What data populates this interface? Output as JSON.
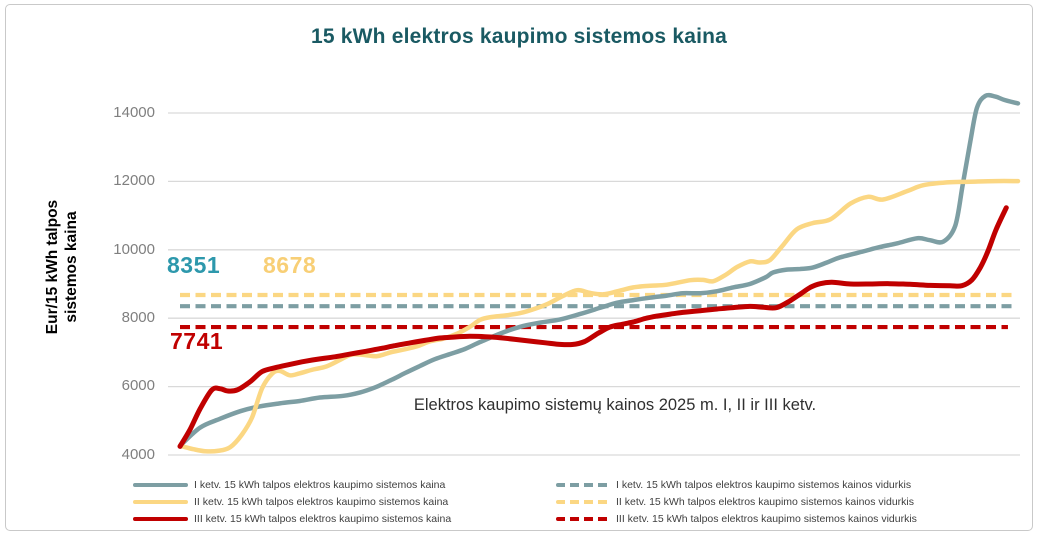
{
  "title": "15 kWh elektros kaupimo sistemos kaina",
  "y_axis": {
    "label_line1": "Eur/15 kWh talpos",
    "label_line2": "sistemos kaina",
    "ticks": [
      4000,
      6000,
      8000,
      10000,
      12000,
      14000
    ]
  },
  "annotations": {
    "avg_q1": "8351",
    "avg_q2": "8678",
    "avg_q3": "7741",
    "center_note": "Elektros kaupimo sistemų kainos 2025 m. I, II ir III ketv."
  },
  "legend": {
    "left": [
      {
        "label": "I ketv. 15 kWh talpos elektros kaupimo sistemos kaina",
        "color": "#7d9ea3",
        "style": "solid"
      },
      {
        "label": "II ketv. 15 kWh talpos elektros kaupimo sistemos kaina",
        "color": "#fbd783",
        "style": "solid"
      },
      {
        "label": "III ketv. 15 kWh talpos elektros kaupimo sistemos kaina",
        "color": "#c00000",
        "style": "solid"
      }
    ],
    "right": [
      {
        "label": "I ketv. 15 kWh talpos elektros kaupimo sistemos kainos vidurkis",
        "color": "#7d9ea3",
        "style": "dashed"
      },
      {
        "label": "II ketv. 15 kWh talpos elektros kaupimo sistemos kainos vidurkis",
        "color": "#fbd783",
        "style": "dashed"
      },
      {
        "label": "III ketv. 15 kWh talpos elektros kaupimo sistemos kainos vidurkis",
        "color": "#c00000",
        "style": "dashed"
      }
    ]
  },
  "colors": {
    "q1_line": "#7d9ea3",
    "q2_line": "#fbd783",
    "q3_line": "#c00000",
    "q1_accent": "#2d98ac",
    "title": "#1a5a63",
    "grid": "#d9d9d9"
  },
  "chart_data": {
    "type": "line",
    "title": "15 kWh elektros kaupimo sistemos kaina",
    "xlabel": "",
    "ylabel": "Eur/15 kWh talpos sistemos kaina",
    "ylim": [
      4000,
      14600
    ],
    "yticks": [
      4000,
      6000,
      8000,
      10000,
      12000,
      14000
    ],
    "grid": "horizontal",
    "legend_position": "bottom",
    "x_is": "sorted system index, percent of range",
    "series": [
      {
        "name": "I ketv. 15 kWh talpos elektros kaupimo sistemos kaina",
        "color": "#7d9ea3",
        "style": "solid",
        "points": [
          [
            0,
            4270
          ],
          [
            2.4,
            4800
          ],
          [
            4.8,
            5060
          ],
          [
            7.2,
            5280
          ],
          [
            9.5,
            5420
          ],
          [
            11.9,
            5510
          ],
          [
            14.3,
            5580
          ],
          [
            16.7,
            5680
          ],
          [
            19.5,
            5730
          ],
          [
            21.5,
            5830
          ],
          [
            23.3,
            5980
          ],
          [
            25.1,
            6180
          ],
          [
            26.9,
            6400
          ],
          [
            28.6,
            6600
          ],
          [
            30.4,
            6800
          ],
          [
            32.2,
            6950
          ],
          [
            34,
            7100
          ],
          [
            35.8,
            7300
          ],
          [
            38.2,
            7550
          ],
          [
            40.6,
            7750
          ],
          [
            43,
            7870
          ],
          [
            45.3,
            7960
          ],
          [
            47.7,
            8120
          ],
          [
            50.1,
            8300
          ],
          [
            52.1,
            8450
          ],
          [
            54.1,
            8530
          ],
          [
            56.1,
            8600
          ],
          [
            58.1,
            8660
          ],
          [
            60,
            8730
          ],
          [
            62.1,
            8730
          ],
          [
            64.1,
            8790
          ],
          [
            66,
            8900
          ],
          [
            68,
            9000
          ],
          [
            69.9,
            9200
          ],
          [
            70.8,
            9340
          ],
          [
            72.4,
            9420
          ],
          [
            74,
            9440
          ],
          [
            75.5,
            9480
          ],
          [
            77.2,
            9630
          ],
          [
            78.8,
            9780
          ],
          [
            81.5,
            9950
          ],
          [
            83.5,
            10080
          ],
          [
            85.6,
            10190
          ],
          [
            88,
            10340
          ],
          [
            89.5,
            10280
          ],
          [
            91.1,
            10240
          ],
          [
            92.5,
            10700
          ],
          [
            93.4,
            11900
          ],
          [
            94.3,
            13150
          ],
          [
            95.1,
            14150
          ],
          [
            96.1,
            14500
          ],
          [
            97.3,
            14480
          ],
          [
            98.4,
            14380
          ],
          [
            100,
            14280
          ]
        ]
      },
      {
        "name": "II ketv. 15 kWh talpos elektros kaupimo sistemos kaina",
        "color": "#fbd783",
        "style": "solid",
        "points": [
          [
            0,
            4270
          ],
          [
            1.6,
            4170
          ],
          [
            3,
            4110
          ],
          [
            4.5,
            4120
          ],
          [
            6,
            4230
          ],
          [
            7.4,
            4600
          ],
          [
            8.6,
            5100
          ],
          [
            9.8,
            5950
          ],
          [
            11,
            6380
          ],
          [
            11.9,
            6460
          ],
          [
            13.1,
            6330
          ],
          [
            14.3,
            6390
          ],
          [
            15.9,
            6500
          ],
          [
            17.5,
            6590
          ],
          [
            19.1,
            6780
          ],
          [
            20.5,
            6940
          ],
          [
            22.1,
            6920
          ],
          [
            23.5,
            6890
          ],
          [
            25.1,
            7000
          ],
          [
            26.6,
            7080
          ],
          [
            28.3,
            7180
          ],
          [
            29.8,
            7320
          ],
          [
            31.4,
            7400
          ],
          [
            33.1,
            7550
          ],
          [
            34.6,
            7750
          ],
          [
            35.8,
            7950
          ],
          [
            37,
            8030
          ],
          [
            38.8,
            8080
          ],
          [
            40.6,
            8150
          ],
          [
            42.4,
            8280
          ],
          [
            43.9,
            8420
          ],
          [
            45.7,
            8650
          ],
          [
            47.4,
            8820
          ],
          [
            48.9,
            8740
          ],
          [
            50.5,
            8700
          ],
          [
            52.1,
            8780
          ],
          [
            54.1,
            8900
          ],
          [
            56.1,
            8950
          ],
          [
            58.1,
            8980
          ],
          [
            60.9,
            9110
          ],
          [
            62.4,
            9120
          ],
          [
            63.6,
            9080
          ],
          [
            65,
            9250
          ],
          [
            66.5,
            9500
          ],
          [
            68,
            9660
          ],
          [
            69.2,
            9630
          ],
          [
            70.4,
            9700
          ],
          [
            72,
            10150
          ],
          [
            73.6,
            10600
          ],
          [
            75.5,
            10780
          ],
          [
            77.6,
            10890
          ],
          [
            80,
            11350
          ],
          [
            82.1,
            11550
          ],
          [
            83.9,
            11470
          ],
          [
            86.8,
            11720
          ],
          [
            88.7,
            11890
          ],
          [
            91.5,
            11970
          ],
          [
            94.3,
            11990
          ],
          [
            97.3,
            12010
          ],
          [
            100,
            12010
          ]
        ]
      },
      {
        "name": "III ketv. 15 kWh talpos elektros kaupimo sistemos kaina",
        "color": "#c00000",
        "style": "solid",
        "points": [
          [
            0,
            4250
          ],
          [
            1.2,
            4750
          ],
          [
            2.4,
            5350
          ],
          [
            3.8,
            5900
          ],
          [
            4.8,
            5940
          ],
          [
            5.7,
            5870
          ],
          [
            6.9,
            5910
          ],
          [
            8.4,
            6150
          ],
          [
            9.8,
            6440
          ],
          [
            11.3,
            6550
          ],
          [
            13.1,
            6650
          ],
          [
            14.9,
            6740
          ],
          [
            16.7,
            6810
          ],
          [
            18.5,
            6870
          ],
          [
            20.3,
            6950
          ],
          [
            22.1,
            7030
          ],
          [
            23.9,
            7110
          ],
          [
            25.7,
            7200
          ],
          [
            27.5,
            7280
          ],
          [
            29.2,
            7350
          ],
          [
            31,
            7420
          ],
          [
            32.8,
            7450
          ],
          [
            34.6,
            7470
          ],
          [
            36.4,
            7460
          ],
          [
            38.2,
            7430
          ],
          [
            40,
            7380
          ],
          [
            41.8,
            7330
          ],
          [
            43.6,
            7280
          ],
          [
            45.1,
            7240
          ],
          [
            46.8,
            7230
          ],
          [
            48.3,
            7320
          ],
          [
            49.9,
            7560
          ],
          [
            51.3,
            7740
          ],
          [
            52.7,
            7820
          ],
          [
            54.1,
            7890
          ],
          [
            55.5,
            7990
          ],
          [
            56.9,
            8060
          ],
          [
            58.5,
            8120
          ],
          [
            60,
            8170
          ],
          [
            62.1,
            8220
          ],
          [
            64.1,
            8270
          ],
          [
            66,
            8310
          ],
          [
            68,
            8345
          ],
          [
            69.6,
            8320
          ],
          [
            71.2,
            8310
          ],
          [
            72.8,
            8510
          ],
          [
            74.1,
            8720
          ],
          [
            75.2,
            8900
          ],
          [
            76.4,
            9010
          ],
          [
            77.8,
            9050
          ],
          [
            80,
            9000
          ],
          [
            82.3,
            9000
          ],
          [
            84.7,
            9010
          ],
          [
            87.1,
            8990
          ],
          [
            89.5,
            8960
          ],
          [
            91.9,
            8950
          ],
          [
            93.3,
            8950
          ],
          [
            94.5,
            9120
          ],
          [
            95.5,
            9480
          ],
          [
            96.4,
            9950
          ],
          [
            97.4,
            10600
          ],
          [
            98.6,
            11230
          ]
        ]
      },
      {
        "name": "I ketv. 15 kWh talpos elektros kaupimo sistemos kainos vidurkis",
        "color": "#7d9ea3",
        "style": "dashed",
        "value": 8351,
        "span": [
          0,
          99.7
        ]
      },
      {
        "name": "II ketv. 15 kWh talpos elektros kaupimo sistemos kainos vidurkis",
        "color": "#fbd783",
        "style": "dashed",
        "value": 8678,
        "span": [
          0,
          99.7
        ]
      },
      {
        "name": "III ketv. 15 kWh talpos elektros kaupimo sistemos kainos vidurkis",
        "color": "#c00000",
        "style": "dashed",
        "value": 7741,
        "span": [
          0,
          98.8
        ]
      }
    ]
  }
}
